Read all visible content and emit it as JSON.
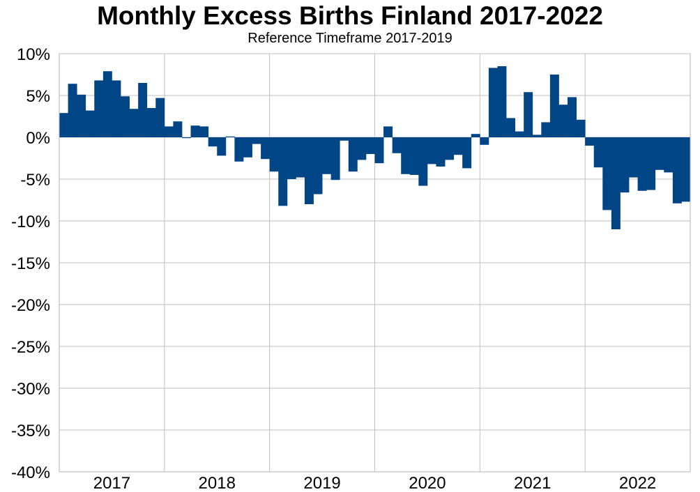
{
  "chart_data": {
    "type": "bar",
    "title": "Monthly Excess Births Finland 2017-2022",
    "subtitle": "Reference Timeframe 2017-2019",
    "xlabel": "",
    "ylabel": "",
    "ylim": [
      -40,
      10
    ],
    "y_ticks": [
      "10%",
      "5%",
      "0%",
      "-5%",
      "-10%",
      "-15%",
      "-20%",
      "-25%",
      "-30%",
      "-35%",
      "-40%"
    ],
    "y_tick_values": [
      10,
      5,
      0,
      -5,
      -10,
      -15,
      -20,
      -25,
      -30,
      -35,
      -40
    ],
    "x_ticks": [
      "2017",
      "2018",
      "2019",
      "2020",
      "2021",
      "2022"
    ],
    "grid": true,
    "bar_color": "#004586",
    "series": [
      {
        "values": [
          2.9,
          6.4,
          5.1,
          3.2,
          6.8,
          7.9,
          6.8,
          4.9,
          3.4,
          6.5,
          3.5,
          4.7,
          1.3,
          1.9,
          -0.1,
          1.4,
          1.3,
          -1.1,
          -2.2,
          0.1,
          -2.9,
          -2.4,
          -0.8,
          -2.6,
          -4.1,
          -8.2,
          -5.0,
          -4.8,
          -8.0,
          -6.8,
          -4.4,
          -5.1,
          -0.4,
          -4.1,
          -2.7,
          -2.0,
          -3.1,
          1.3,
          -1.9,
          -4.4,
          -4.5,
          -5.8,
          -3.2,
          -3.5,
          -2.7,
          -2.1,
          -3.7,
          0.4,
          -0.9,
          8.3,
          8.5,
          2.3,
          0.7,
          5.4,
          0.3,
          1.8,
          7.5,
          3.9,
          4.8,
          2.1,
          -1.0,
          -3.6,
          -8.7,
          -11.0,
          -6.6,
          -4.8,
          -6.4,
          -6.3,
          -3.9,
          -4.2,
          -7.9,
          -7.7
        ]
      }
    ]
  }
}
